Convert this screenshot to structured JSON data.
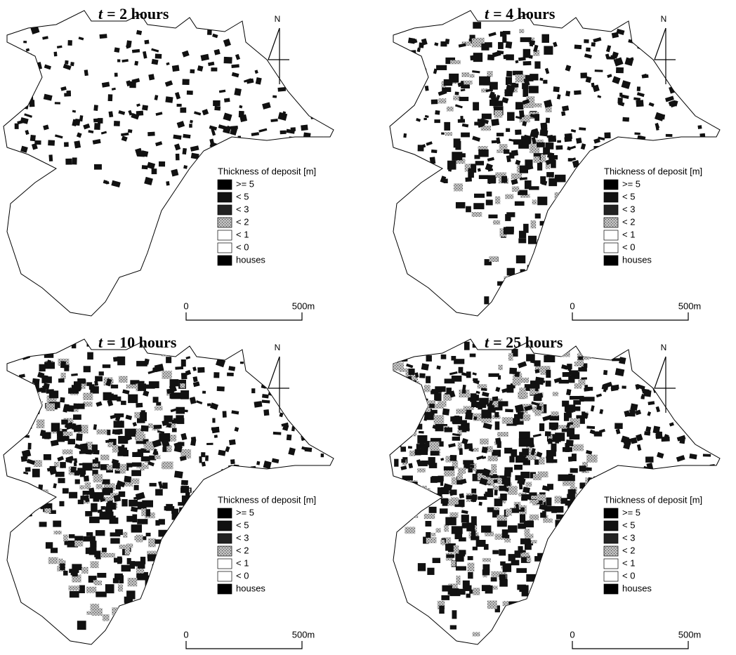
{
  "panels": [
    {
      "title": {
        "var": "t",
        "text": "= 2 hours"
      }
    },
    {
      "title": {
        "var": "t",
        "text": "= 4 hours"
      }
    },
    {
      "title": {
        "var": "t",
        "text": "= 10 hours"
      }
    },
    {
      "title": {
        "var": "t",
        "text": "= 25 hours"
      }
    }
  ],
  "north_label": "N",
  "legend": {
    "title": "Thickness of deposit [m]",
    "items": [
      ">=  5",
      "<  5",
      "<  3",
      "<  2",
      "<  1",
      "<  0",
      "houses"
    ]
  },
  "scale": {
    "start": "0",
    "end": "500m"
  }
}
